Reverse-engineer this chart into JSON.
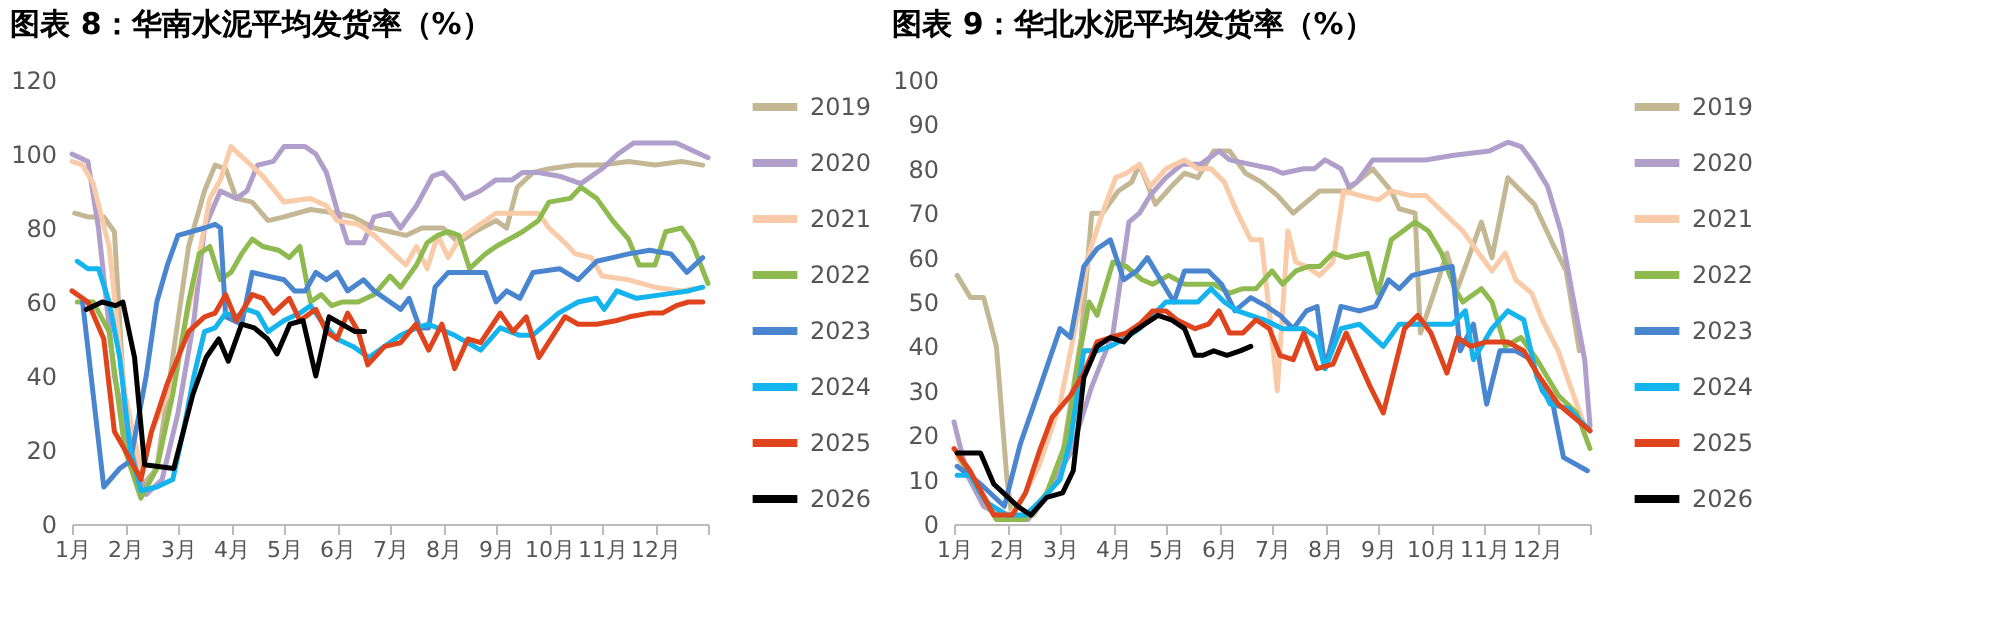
{
  "chart_data": [
    {
      "type": "line",
      "title": "图表 8：华南水泥平均发货率（%）",
      "legend": "right",
      "grid": false,
      "marker": "none",
      "line_style": "solid",
      "xlim": [
        1,
        13
      ],
      "xticks": [
        {
          "value": 1,
          "label": "1月"
        },
        {
          "value": 2,
          "label": "2月"
        },
        {
          "value": 3,
          "label": "3月"
        },
        {
          "value": 4,
          "label": "4月"
        },
        {
          "value": 5,
          "label": "5月"
        },
        {
          "value": 6,
          "label": "6月"
        },
        {
          "value": 7,
          "label": "7月"
        },
        {
          "value": 8,
          "label": "8月"
        },
        {
          "value": 9,
          "label": "9月"
        },
        {
          "value": 10,
          "label": "10月"
        },
        {
          "value": 11,
          "label": "11月"
        },
        {
          "value": 12,
          "label": "12月"
        },
        {
          "value": 13,
          "label": null
        }
      ],
      "ylim": [
        0,
        120
      ],
      "yticks": [
        0,
        20,
        40,
        60,
        80,
        100,
        120
      ],
      "series": [
        {
          "name": "2019",
          "color": "#c4b894",
          "x": [
            1.05,
            1.3,
            1.6,
            1.8,
            2.0,
            2.3,
            2.6,
            2.9,
            3.2,
            3.5,
            3.7,
            3.9,
            4.1,
            4.4,
            4.7,
            5.0,
            5.5,
            6.0,
            6.3,
            6.7,
            7.0,
            7.3,
            7.6,
            8.0,
            8.3,
            8.6,
            9.0,
            9.2,
            9.4,
            9.7,
            10.0,
            10.5,
            11.0,
            11.5,
            12.0,
            12.5,
            12.9
          ],
          "values": [
            84,
            83,
            83,
            79,
            30,
            10,
            15,
            45,
            75,
            90,
            97,
            96,
            88,
            87,
            82,
            83,
            85,
            84,
            83,
            80,
            79,
            78,
            80,
            80,
            76,
            79,
            82,
            80,
            91,
            95,
            96,
            97,
            97,
            98,
            97,
            98,
            97
          ]
        },
        {
          "name": "2020",
          "color": "#b09fcb",
          "x": [
            1.0,
            1.3,
            1.5,
            1.8,
            2.1,
            2.4,
            2.7,
            3.0,
            3.3,
            3.5,
            3.8,
            4.1,
            4.3,
            4.5,
            4.8,
            5.0,
            5.4,
            5.6,
            5.8,
            6.0,
            6.2,
            6.5,
            6.7,
            7.0,
            7.2,
            7.5,
            7.8,
            8.0,
            8.2,
            8.4,
            8.7,
            9.0,
            9.3,
            9.5,
            9.8,
            10.2,
            10.6,
            11.0,
            11.3,
            11.6,
            12.0,
            12.4,
            12.7,
            13.0
          ],
          "values": [
            100,
            98,
            80,
            40,
            20,
            8,
            12,
            30,
            55,
            80,
            90,
            88,
            90,
            97,
            98,
            102,
            102,
            100,
            95,
            85,
            76,
            76,
            83,
            84,
            80,
            86,
            94,
            95,
            92,
            88,
            90,
            93,
            93,
            95,
            95,
            94,
            92,
            96,
            100,
            103,
            103,
            103,
            101,
            99
          ]
        },
        {
          "name": "2021",
          "color": "#f9cba9",
          "x": [
            1.0,
            1.2,
            1.4,
            1.7,
            2.0,
            2.3,
            2.5,
            2.8,
            3.0,
            3.3,
            3.6,
            3.8,
            4.0,
            4.3,
            4.6,
            5.0,
            5.5,
            5.8,
            6.0,
            6.4,
            6.7,
            7.0,
            7.3,
            7.5,
            7.7,
            7.9,
            8.1,
            8.3,
            8.6,
            9.0,
            9.5,
            9.8,
            10.0,
            10.3,
            10.5,
            10.8,
            11.0,
            11.5,
            12.0,
            12.5,
            12.9
          ],
          "values": [
            98,
            97,
            92,
            75,
            35,
            15,
            25,
            35,
            45,
            65,
            88,
            93,
            102,
            98,
            94,
            87,
            88,
            86,
            82,
            81,
            78,
            74,
            70,
            75,
            69,
            78,
            72,
            77,
            80,
            84,
            84,
            84,
            80,
            76,
            73,
            72,
            67,
            66,
            64,
            63,
            64
          ]
        },
        {
          "name": "2022",
          "color": "#8fba4f",
          "x": [
            1.1,
            1.4,
            1.7,
            2.0,
            2.3,
            2.6,
            2.9,
            3.2,
            3.4,
            3.6,
            3.8,
            4.0,
            4.2,
            4.4,
            4.6,
            4.9,
            5.1,
            5.3,
            5.5,
            5.7,
            5.9,
            6.1,
            6.4,
            6.7,
            7.0,
            7.2,
            7.5,
            7.7,
            7.9,
            8.1,
            8.3,
            8.5,
            8.8,
            9.0,
            9.5,
            9.8,
            10.0,
            10.4,
            10.6,
            10.9,
            11.2,
            11.5,
            11.7,
            12.0,
            12.2,
            12.5,
            12.7,
            13.0
          ],
          "values": [
            60,
            60,
            52,
            20,
            7,
            15,
            35,
            60,
            73,
            75,
            66,
            68,
            73,
            77,
            75,
            74,
            72,
            75,
            60,
            62,
            59,
            60,
            60,
            62,
            67,
            64,
            70,
            76,
            78,
            79,
            78,
            69,
            73,
            75,
            79,
            82,
            87,
            88,
            91,
            88,
            82,
            77,
            70,
            70,
            79,
            80,
            76,
            65
          ]
        },
        {
          "name": "2023",
          "color": "#4a86d0",
          "x": [
            1.2,
            1.6,
            1.9,
            2.1,
            2.4,
            2.6,
            2.8,
            3.0,
            3.5,
            3.7,
            3.8,
            3.9,
            4.2,
            4.4,
            4.7,
            5.0,
            5.2,
            5.4,
            5.6,
            5.8,
            6.0,
            6.2,
            6.5,
            6.7,
            7.0,
            7.2,
            7.36,
            7.56,
            7.73,
            7.85,
            8.1,
            8.6,
            8.8,
            9.0,
            9.2,
            9.45,
            9.7,
            10.2,
            10.55,
            10.9,
            11.2,
            11.5,
            11.9,
            12.3,
            12.6,
            12.9
          ],
          "values": [
            60,
            10,
            15,
            17,
            40,
            60,
            70,
            78,
            80,
            81,
            80,
            56,
            54,
            68,
            67,
            66,
            63,
            63,
            68,
            66,
            68,
            63,
            66,
            63,
            60,
            58,
            61,
            53,
            53,
            64,
            68,
            68,
            68,
            60,
            63,
            61,
            68,
            69,
            66,
            71,
            72,
            73,
            74,
            73,
            68,
            72
          ]
        },
        {
          "name": "2024",
          "color": "#14b4ee",
          "x": [
            1.1,
            1.3,
            1.5,
            1.7,
            1.9,
            2.1,
            2.3,
            2.6,
            2.9,
            3.1,
            3.3,
            3.5,
            3.7,
            3.9,
            4.1,
            4.3,
            4.5,
            4.7,
            5.0,
            5.3,
            5.5,
            5.7,
            6.0,
            6.3,
            6.6,
            6.9,
            7.2,
            7.5,
            7.73,
            8.22,
            8.71,
            9.08,
            9.45,
            9.69,
            10.18,
            10.55,
            10.9,
            11.04,
            11.28,
            11.65,
            12.14,
            12.63,
            12.9
          ],
          "values": [
            71,
            69,
            69,
            60,
            45,
            20,
            9,
            10,
            12,
            25,
            40,
            52,
            53,
            57,
            56,
            58,
            57,
            52,
            55,
            57,
            59,
            55,
            50,
            48,
            45,
            48,
            51,
            53,
            54,
            51,
            47,
            53,
            51,
            51,
            57,
            60,
            61,
            58,
            63,
            61,
            62,
            63,
            64
          ]
        },
        {
          "name": "2025",
          "color": "#e0441c",
          "x": [
            1.0,
            1.3,
            1.6,
            1.8,
            2.0,
            2.3,
            2.5,
            2.8,
            3.0,
            3.2,
            3.5,
            3.7,
            3.9,
            4.1,
            4.4,
            4.6,
            4.8,
            5.1,
            5.3,
            5.6,
            5.8,
            6.0,
            6.2,
            6.4,
            6.58,
            6.9,
            7.2,
            7.49,
            7.73,
            7.98,
            8.22,
            8.47,
            8.71,
            9.08,
            9.32,
            9.57,
            9.81,
            10.3,
            10.55,
            10.9,
            11.28,
            11.52,
            11.9,
            12.14,
            12.4,
            12.63,
            12.9
          ],
          "values": [
            63,
            60,
            50,
            25,
            20,
            12,
            25,
            38,
            45,
            52,
            56,
            57,
            62,
            55,
            62,
            61,
            57,
            61,
            55,
            58,
            52,
            50,
            57,
            52,
            43,
            48,
            49,
            54,
            47,
            54,
            42,
            50,
            49,
            57,
            52,
            56,
            45,
            56,
            54,
            54,
            55,
            56,
            57,
            57,
            59,
            60,
            60
          ]
        },
        {
          "name": "2026",
          "color": "#000000",
          "x": [
            1.27,
            1.57,
            1.82,
            1.96,
            2.18,
            2.37,
            2.92,
            3.28,
            3.53,
            3.77,
            3.95,
            4.2,
            4.44,
            4.69,
            4.87,
            5.11,
            5.36,
            5.6,
            5.85,
            6.09,
            6.34,
            6.52
          ],
          "values": [
            58,
            60,
            59,
            60,
            45,
            16,
            15,
            35,
            45,
            50,
            44,
            54,
            53,
            50,
            46,
            54,
            55,
            40,
            56,
            54,
            52,
            52
          ]
        }
      ]
    },
    {
      "type": "line",
      "title": "图表 9：华北水泥平均发货率（%）",
      "legend": "right",
      "grid": false,
      "marker": "none",
      "line_style": "solid",
      "xlim": [
        1,
        13
      ],
      "xticks": [
        {
          "value": 1,
          "label": "1月"
        },
        {
          "value": 2,
          "label": "2月"
        },
        {
          "value": 3,
          "label": "3月"
        },
        {
          "value": 4,
          "label": "4月"
        },
        {
          "value": 5,
          "label": "5月"
        },
        {
          "value": 6,
          "label": "6月"
        },
        {
          "value": 7,
          "label": "7月"
        },
        {
          "value": 8,
          "label": "8月"
        },
        {
          "value": 9,
          "label": "9月"
        },
        {
          "value": 10,
          "label": "10月"
        },
        {
          "value": 11,
          "label": "11月"
        },
        {
          "value": 12,
          "label": "12月"
        },
        {
          "value": 13,
          "label": null
        }
      ],
      "ylim": [
        0,
        100
      ],
      "yticks": [
        0,
        10,
        20,
        30,
        40,
        50,
        60,
        70,
        80,
        90,
        100
      ],
      "series": [
        {
          "name": "2019",
          "color": "#c4b894",
          "x": [
            1.06,
            1.31,
            1.56,
            1.8,
            2.0,
            2.1,
            2.5,
            3.0,
            3.4,
            3.6,
            3.8,
            4.1,
            4.35,
            4.5,
            4.8,
            5.1,
            5.35,
            5.6,
            5.9,
            6.2,
            6.5,
            6.8,
            7.1,
            7.4,
            7.7,
            7.9,
            8.4,
            8.9,
            9.25,
            9.4,
            9.7,
            9.8,
            10.0,
            10.3,
            10.5,
            10.95,
            11.15,
            11.45,
            11.95,
            12.3,
            12.55,
            12.8
          ],
          "values": [
            56,
            51,
            51,
            40,
            10,
            1,
            2,
            12,
            42,
            70,
            70,
            75,
            77,
            81,
            72,
            76,
            79,
            78,
            84,
            84,
            79,
            77,
            74,
            70,
            73,
            75,
            75,
            80,
            75,
            71,
            70,
            43,
            50,
            61,
            53,
            68,
            60,
            78,
            72,
            63,
            57,
            39
          ]
        },
        {
          "name": "2020",
          "color": "#b09fcb",
          "x": [
            1.0,
            1.25,
            1.56,
            2.0,
            2.4,
            2.7,
            3.2,
            3.6,
            4.0,
            4.3,
            4.5,
            4.7,
            5.0,
            5.3,
            5.65,
            6.0,
            6.2,
            6.6,
            7.0,
            7.2,
            7.6,
            7.8,
            8.0,
            8.3,
            8.45,
            8.6,
            8.9,
            9.4,
            9.9,
            10.4,
            11.1,
            11.45,
            11.7,
            11.95,
            12.2,
            12.45,
            12.65,
            12.9,
            13.0
          ],
          "values": [
            23,
            11,
            4,
            1,
            1,
            6,
            16,
            31,
            43,
            68,
            70,
            74,
            78,
            81,
            81,
            84,
            82,
            81,
            80,
            79,
            80,
            80,
            82,
            80,
            76,
            77,
            82,
            82,
            82,
            83,
            84,
            86,
            85,
            81,
            76,
            66,
            53,
            37,
            22
          ]
        },
        {
          "name": "2021",
          "color": "#f9cba9",
          "x": [
            1.06,
            1.4,
            1.7,
            2.05,
            2.3,
            2.6,
            3.0,
            3.3,
            3.55,
            3.8,
            4.05,
            4.25,
            4.5,
            4.7,
            5.0,
            5.35,
            5.6,
            5.85,
            6.1,
            6.35,
            6.6,
            6.8,
            7.0,
            7.1,
            7.3,
            7.45,
            7.65,
            7.9,
            8.15,
            8.35,
            8.65,
            9.0,
            9.25,
            9.6,
            9.9,
            10.25,
            10.6,
            10.9,
            11.15,
            11.4,
            11.6,
            11.9,
            12.1,
            12.4,
            12.6,
            12.9
          ],
          "values": [
            15,
            9,
            4,
            2,
            6,
            13,
            27,
            45,
            61,
            70,
            78,
            79,
            81,
            76,
            80,
            82,
            80,
            80,
            77,
            70,
            64,
            64,
            42,
            30,
            66,
            59,
            58,
            56,
            59,
            75,
            74,
            73,
            75,
            74,
            74,
            70,
            66,
            61,
            57,
            61,
            55,
            52,
            46,
            39,
            32,
            22
          ]
        },
        {
          "name": "2022",
          "color": "#8fba4f",
          "x": [
            1.06,
            1.5,
            1.8,
            2.0,
            2.35,
            2.75,
            3.1,
            3.35,
            3.55,
            3.7,
            4.0,
            4.25,
            4.55,
            4.75,
            5.05,
            5.35,
            5.65,
            5.9,
            6.2,
            6.45,
            6.7,
            7.0,
            7.2,
            7.45,
            7.7,
            7.9,
            8.15,
            8.4,
            8.8,
            9.0,
            9.25,
            9.7,
            9.95,
            10.2,
            10.45,
            10.6,
            10.95,
            11.15,
            11.4,
            11.7,
            12.0,
            12.4,
            12.75,
            13.0
          ],
          "values": [
            16,
            7,
            1,
            1,
            1,
            7,
            18,
            37,
            50,
            47,
            59,
            58,
            55,
            54,
            56,
            54,
            54,
            54,
            52,
            53,
            53,
            57,
            54,
            57,
            58,
            58,
            61,
            60,
            61,
            52,
            64,
            68,
            66,
            61,
            53,
            50,
            53,
            50,
            40,
            42,
            37,
            29,
            25,
            17
          ]
        },
        {
          "name": "2023",
          "color": "#4a86d0",
          "x": [
            1.06,
            1.5,
            1.95,
            2.25,
            2.6,
            3.0,
            3.2,
            3.45,
            3.7,
            3.95,
            4.2,
            4.45,
            4.65,
            5.0,
            5.15,
            5.35,
            5.6,
            5.8,
            6.05,
            6.3,
            6.6,
            6.9,
            7.15,
            7.4,
            7.65,
            7.85,
            8.0,
            8.3,
            8.65,
            8.95,
            9.2,
            9.4,
            9.65,
            10.0,
            10.4,
            10.55,
            10.8,
            11.05,
            11.3,
            11.6,
            11.9,
            12.1,
            12.3,
            12.5,
            12.95
          ],
          "values": [
            13,
            9,
            4,
            18,
            30,
            44,
            42,
            58,
            62,
            64,
            55,
            57,
            60,
            53,
            50,
            57,
            57,
            57,
            54,
            48,
            51,
            49,
            47,
            44,
            48,
            49,
            35,
            49,
            48,
            49,
            55,
            53,
            56,
            57,
            58,
            39,
            45,
            27,
            39,
            39,
            37,
            30,
            27,
            15,
            12
          ]
        },
        {
          "name": "2024",
          "color": "#14b4ee",
          "x": [
            1.06,
            1.3,
            1.6,
            2.0,
            2.35,
            2.7,
            3.0,
            3.2,
            3.45,
            3.7,
            3.95,
            4.25,
            4.5,
            4.75,
            5.0,
            5.35,
            5.6,
            5.85,
            6.1,
            6.35,
            6.6,
            6.85,
            7.2,
            7.6,
            7.85,
            8.0,
            8.3,
            8.65,
            9.1,
            9.4,
            9.9,
            10.4,
            10.65,
            10.8,
            11.15,
            11.45,
            11.75,
            12.0,
            12.25,
            12.6,
            13.0
          ],
          "values": [
            11,
            11,
            5,
            2,
            2,
            6,
            10,
            19,
            39,
            39,
            40,
            42,
            44,
            47,
            50,
            50,
            50,
            53,
            50,
            48,
            47,
            46,
            44,
            44,
            42,
            35,
            44,
            45,
            40,
            45,
            45,
            45,
            48,
            37,
            44,
            48,
            46,
            33,
            27,
            26,
            21
          ]
        },
        {
          "name": "2025",
          "color": "#e0441c",
          "x": [
            1.0,
            1.3,
            1.75,
            2.1,
            2.35,
            2.6,
            2.85,
            3.2,
            3.45,
            3.7,
            3.95,
            4.25,
            4.5,
            4.75,
            5.0,
            5.2,
            5.55,
            5.8,
            6.0,
            6.2,
            6.45,
            6.7,
            6.95,
            7.15,
            7.4,
            7.6,
            7.85,
            8.15,
            8.4,
            8.85,
            9.1,
            9.5,
            9.75,
            10.0,
            10.3,
            10.5,
            10.75,
            11.05,
            11.45,
            11.75,
            12.0,
            12.4,
            12.6,
            12.9,
            13.0
          ],
          "values": [
            17,
            12,
            2,
            2,
            7,
            16,
            24,
            29,
            34,
            41,
            42,
            43,
            45,
            48,
            48,
            46,
            44,
            45,
            48,
            43,
            43,
            46,
            44,
            38,
            37,
            43,
            35,
            36,
            43,
            31,
            25,
            44,
            47,
            43,
            34,
            42,
            40,
            41,
            41,
            39,
            34,
            27,
            25,
            22,
            21
          ]
        },
        {
          "name": "2026",
          "color": "#000000",
          "x": [
            1.06,
            1.5,
            1.75,
            1.93,
            2.2,
            2.45,
            2.75,
            3.05,
            3.25,
            3.45,
            3.7,
            3.95,
            4.2,
            4.35,
            4.6,
            4.85,
            5.1,
            5.35,
            5.55,
            5.7,
            5.9,
            6.15,
            6.4,
            6.6
          ],
          "values": [
            16,
            16,
            9,
            7,
            4,
            2,
            6,
            7,
            12,
            33,
            40,
            42,
            41,
            43,
            45,
            47,
            46,
            44,
            38,
            38,
            39,
            38,
            39,
            40
          ]
        }
      ]
    }
  ]
}
